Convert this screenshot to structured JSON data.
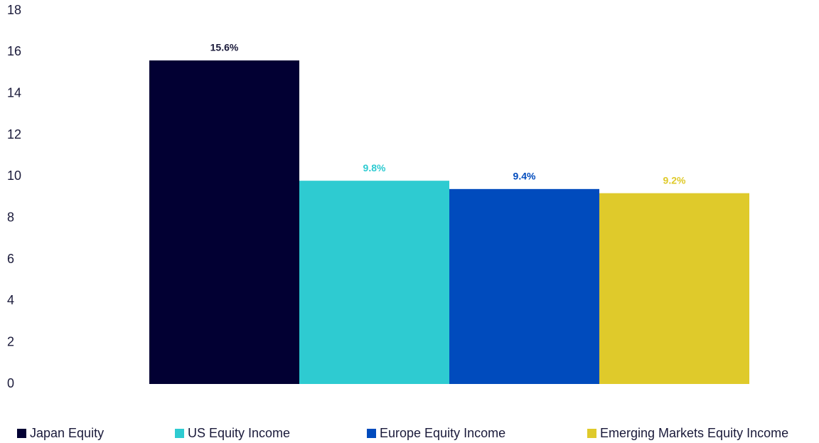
{
  "chart_data": {
    "type": "bar",
    "categories": [
      null
    ],
    "series": [
      {
        "name": "Japan Equity",
        "color": "#020033",
        "values": [
          15.6
        ],
        "value_labels": [
          "15.6%"
        ]
      },
      {
        "name": "US Equity Income",
        "color": "#2ecbd1",
        "values": [
          9.8
        ],
        "value_labels": [
          "9.8%"
        ]
      },
      {
        "name": "Europe Equity Income",
        "color": "#004bbd",
        "values": [
          9.4
        ],
        "value_labels": [
          "9.4%"
        ]
      },
      {
        "name": "Emerging Markets Equity Income",
        "color": "#dfca2b",
        "values": [
          9.2
        ],
        "value_labels": [
          "9.2%"
        ]
      }
    ],
    "ylim": [
      0,
      18
    ],
    "yticks": [
      0,
      2,
      4,
      6,
      8,
      10,
      12,
      14,
      16,
      18
    ],
    "grid": false,
    "legend": "bottom"
  }
}
